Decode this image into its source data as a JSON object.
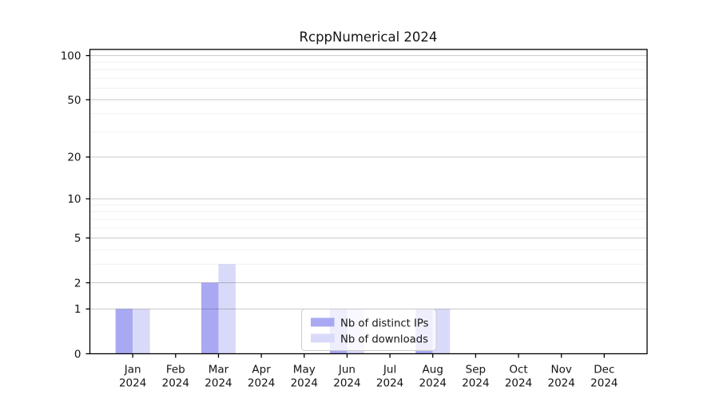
{
  "chart_data": {
    "type": "bar",
    "title": "RcppNumerical 2024",
    "categories": [
      "Jan 2024",
      "Feb 2024",
      "Mar 2024",
      "Apr 2024",
      "May 2024",
      "Jun 2024",
      "Jul 2024",
      "Aug 2024",
      "Sep 2024",
      "Oct 2024",
      "Nov 2024",
      "Dec 2024"
    ],
    "series": [
      {
        "name": "Nb of distinct IPs",
        "color": "#a9a9f3",
        "values": [
          1,
          0,
          2,
          0,
          0,
          1,
          0,
          1,
          0,
          0,
          0,
          0
        ]
      },
      {
        "name": "Nb of downloads",
        "color": "#d9d9f9",
        "values": [
          1,
          0,
          3,
          0,
          0,
          1,
          0,
          1,
          0,
          0,
          0,
          0
        ]
      }
    ],
    "xlabel": "",
    "ylabel": "",
    "yscale": "log1p",
    "ylim": [
      0,
      110
    ],
    "y_major_ticks": [
      0,
      1,
      2,
      5,
      10,
      20,
      50,
      100
    ],
    "y_minor_gridlines": [
      3,
      4,
      6,
      7,
      8,
      9,
      30,
      40,
      60,
      70,
      80,
      90
    ],
    "grid": "on",
    "legend_position": "lower center",
    "colors": {
      "axis": "#000000",
      "major_grid": "rgba(0,0,0,0.21)",
      "minor_grid": "rgba(0,0,0,0.06)",
      "legend_border": "#cccccc"
    }
  }
}
